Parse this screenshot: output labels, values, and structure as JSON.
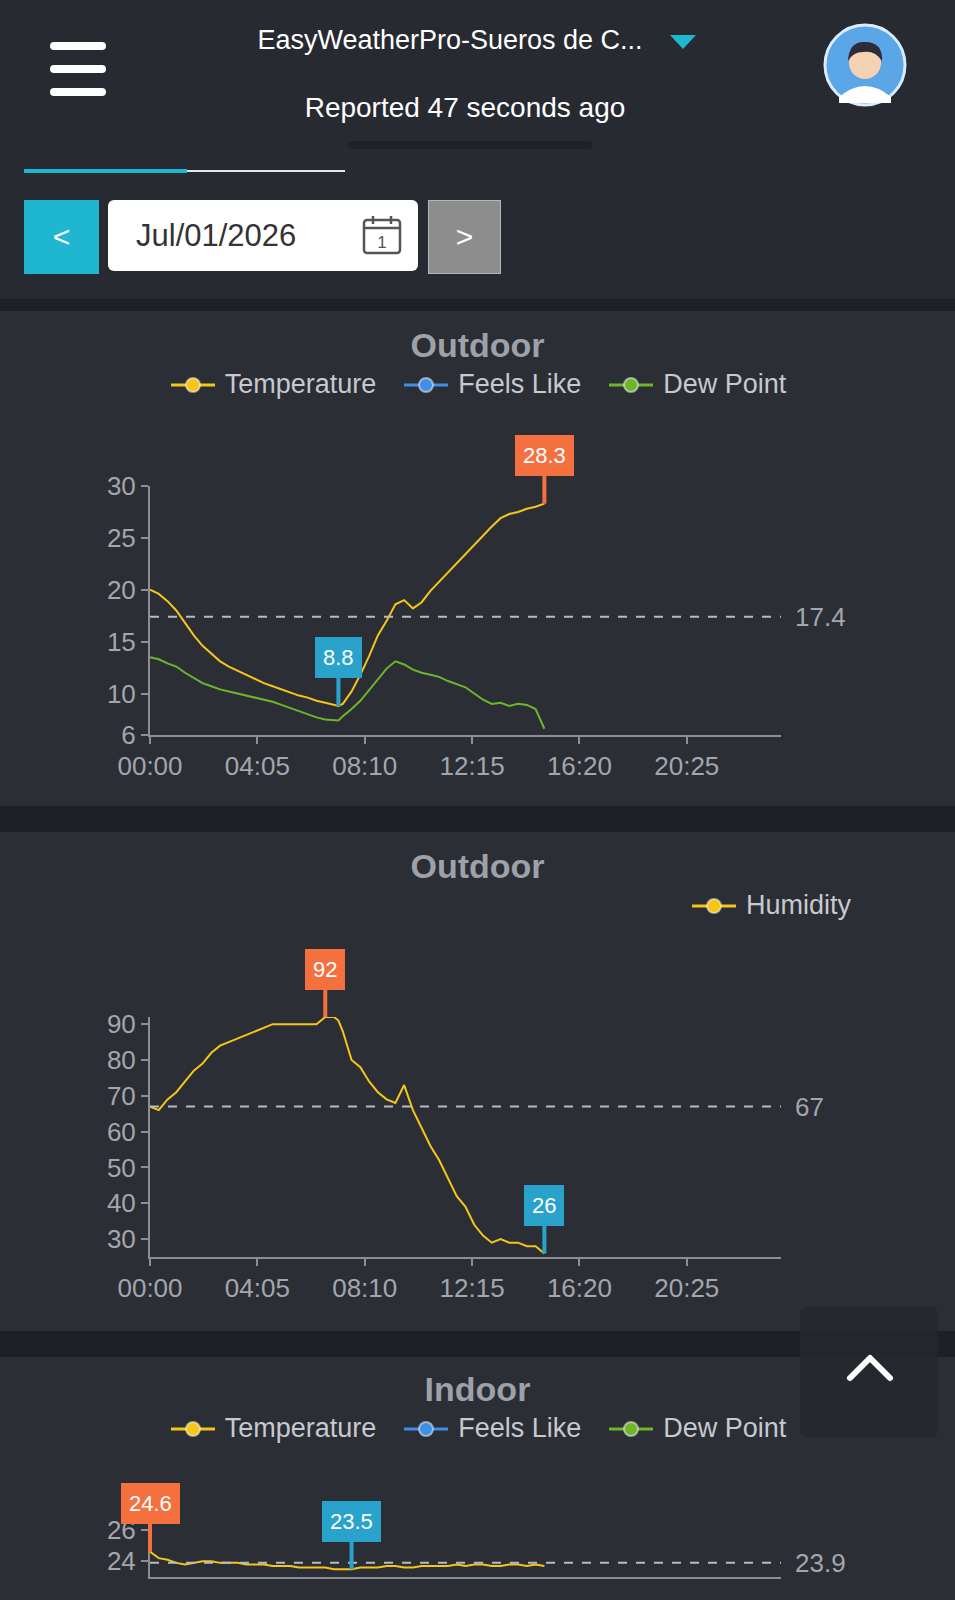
{
  "header": {
    "station": "EasyWeatherPro-Sueros de C...",
    "status": "Reported 47 seconds ago"
  },
  "date_picker": {
    "prev": "<",
    "date": "Jul/01/2026",
    "calendar_day": "1",
    "next": ">"
  },
  "chart_data": [
    {
      "type": "line",
      "title": "Outdoor",
      "legend": "top",
      "grid": false,
      "x": [
        0,
        20,
        40,
        60,
        80,
        100,
        120,
        140,
        160,
        180,
        200,
        220,
        240,
        260,
        280,
        300,
        320,
        340,
        360,
        380,
        400,
        420,
        430,
        440,
        460,
        480,
        500,
        520,
        540,
        560,
        580,
        600,
        620,
        640,
        660,
        680,
        700,
        720,
        740,
        760,
        780,
        800,
        820,
        840,
        860,
        880,
        900
      ],
      "xlim": [
        0,
        1440
      ],
      "xticks": [
        {
          "value": 0,
          "label": "00:00"
        },
        {
          "value": 245,
          "label": "04:05"
        },
        {
          "value": 490,
          "label": "08:10"
        },
        {
          "value": 735,
          "label": "12:15"
        },
        {
          "value": 980,
          "label": "16:20"
        },
        {
          "value": 1225,
          "label": "20:25"
        }
      ],
      "ylim": [
        6,
        30
      ],
      "yticks": [
        6,
        10,
        15,
        20,
        25,
        30
      ],
      "average": 17.4,
      "max": {
        "x": 900,
        "value": 28.3
      },
      "min": {
        "x": 430,
        "value": 8.8
      },
      "series": [
        {
          "name": "Temperature",
          "color": "#f5c518",
          "values": [
            20.0,
            19.6,
            18.9,
            18.0,
            16.8,
            15.6,
            14.6,
            13.8,
            13.1,
            12.6,
            12.2,
            11.8,
            11.4,
            11.0,
            10.7,
            10.4,
            10.1,
            9.8,
            9.6,
            9.3,
            9.1,
            8.9,
            8.8,
            9.0,
            10.2,
            11.8,
            13.6,
            15.6,
            17.0,
            18.6,
            19.0,
            18.2,
            18.8,
            19.9,
            20.8,
            21.7,
            22.6,
            23.5,
            24.3,
            25.2,
            26.1,
            26.9,
            27.3,
            27.5,
            27.8,
            28.0,
            28.3
          ]
        },
        {
          "name": "Feels Like",
          "color": "#3f8fe6",
          "values": [
            null,
            null,
            null,
            null,
            null,
            null,
            null,
            null,
            null,
            null,
            null,
            null,
            null,
            null,
            null,
            null,
            null,
            null,
            null,
            null,
            null,
            null,
            null,
            null,
            null,
            null,
            null,
            null,
            null,
            null,
            null,
            null,
            null,
            null,
            null,
            null,
            null,
            null,
            null,
            null,
            null,
            null,
            null,
            null,
            null,
            null,
            null
          ]
        },
        {
          "name": "Dew Point",
          "color": "#6fb52c",
          "values": [
            13.5,
            13.3,
            12.9,
            12.6,
            12.0,
            11.5,
            11.0,
            10.7,
            10.4,
            10.2,
            10.0,
            9.8,
            9.6,
            9.4,
            9.2,
            8.9,
            8.6,
            8.3,
            8.0,
            7.7,
            7.5,
            7.4,
            7.4,
            7.8,
            8.5,
            9.3,
            10.3,
            11.4,
            12.4,
            13.1,
            12.8,
            12.3,
            12.0,
            11.8,
            11.6,
            11.2,
            10.9,
            10.6,
            10.0,
            9.4,
            9.0,
            9.1,
            8.8,
            9.0,
            8.9,
            8.5,
            6.6
          ]
        }
      ]
    },
    {
      "type": "line",
      "title": "Outdoor",
      "legend": "top right",
      "grid": false,
      "x": [
        0,
        20,
        40,
        60,
        80,
        100,
        120,
        140,
        160,
        180,
        200,
        220,
        240,
        260,
        280,
        300,
        320,
        340,
        360,
        380,
        400,
        420,
        430,
        440,
        460,
        480,
        500,
        520,
        540,
        560,
        580,
        600,
        620,
        640,
        660,
        680,
        700,
        720,
        740,
        760,
        780,
        800,
        820,
        840,
        860,
        880,
        900
      ],
      "xlim": [
        0,
        1440
      ],
      "xticks": [
        {
          "value": 0,
          "label": "00:00"
        },
        {
          "value": 245,
          "label": "04:05"
        },
        {
          "value": 490,
          "label": "08:10"
        },
        {
          "value": 735,
          "label": "12:15"
        },
        {
          "value": 980,
          "label": "16:20"
        },
        {
          "value": 1225,
          "label": "20:25"
        }
      ],
      "ylim": [
        25,
        92
      ],
      "yticks": [
        30,
        40,
        50,
        60,
        70,
        80,
        90
      ],
      "average": 67,
      "max": {
        "x": 400,
        "value": 92
      },
      "min": {
        "x": 900,
        "value": 26
      },
      "series": [
        {
          "name": "Humidity",
          "color": "#f5c518",
          "values": [
            67,
            66,
            69,
            71,
            74,
            77,
            79,
            82,
            84,
            85,
            86,
            87,
            88,
            89,
            90,
            90,
            90,
            90,
            90,
            90,
            92,
            92,
            91,
            88,
            80,
            78,
            74,
            71,
            69,
            68,
            73,
            66,
            61,
            56,
            52,
            47,
            42,
            39,
            34,
            31,
            29,
            30,
            29,
            29,
            28,
            28,
            26
          ]
        }
      ]
    },
    {
      "type": "line",
      "title": "Indoor",
      "legend": "top",
      "grid": false,
      "tick_labels": "y",
      "x": [
        0,
        20,
        40,
        60,
        80,
        100,
        120,
        140,
        160,
        180,
        200,
        220,
        240,
        260,
        280,
        300,
        320,
        340,
        360,
        380,
        400,
        420,
        430,
        440,
        460,
        480,
        500,
        520,
        540,
        560,
        580,
        600,
        620,
        640,
        660,
        680,
        700,
        720,
        740,
        760,
        780,
        800,
        820,
        840,
        860,
        880,
        900
      ],
      "xlim": [
        0,
        1440
      ],
      "ylim": [
        23,
        26.5
      ],
      "yticks": [
        24,
        26
      ],
      "average": 23.9,
      "max": {
        "x": 0,
        "value": 24.6
      },
      "min": {
        "x": 460,
        "value": 23.5
      },
      "series": [
        {
          "name": "Temperature",
          "color": "#f5c518",
          "values": [
            24.6,
            24.2,
            24.1,
            23.9,
            23.8,
            23.9,
            24.0,
            24.0,
            23.9,
            23.9,
            23.9,
            23.8,
            23.8,
            23.8,
            23.7,
            23.7,
            23.7,
            23.6,
            23.6,
            23.6,
            23.6,
            23.5,
            23.5,
            23.5,
            23.5,
            23.6,
            23.6,
            23.6,
            23.7,
            23.7,
            23.6,
            23.6,
            23.7,
            23.7,
            23.7,
            23.7,
            23.8,
            23.7,
            23.8,
            23.8,
            23.7,
            23.7,
            23.8,
            23.8,
            23.7,
            23.8,
            23.7
          ]
        },
        {
          "name": "Feels Like",
          "color": "#3f8fe6",
          "values": [
            null,
            null,
            null,
            null,
            null,
            null,
            null,
            null,
            null,
            null,
            null,
            null,
            null,
            null,
            null,
            null,
            null,
            null,
            null,
            null,
            null,
            null,
            null,
            null,
            null,
            null,
            null,
            null,
            null,
            null,
            null,
            null,
            null,
            null,
            null,
            null,
            null,
            null,
            null,
            null,
            null,
            null,
            null,
            null,
            null,
            null,
            null
          ]
        },
        {
          "name": "Dew Point",
          "color": "#6fb52c",
          "values": [
            null,
            null,
            null,
            null,
            null,
            null,
            null,
            null,
            null,
            null,
            null,
            null,
            null,
            null,
            null,
            null,
            null,
            null,
            null,
            null,
            null,
            null,
            null,
            null,
            null,
            null,
            null,
            null,
            null,
            null,
            null,
            null,
            null,
            null,
            null,
            null,
            null,
            null,
            null,
            null,
            null,
            null,
            null,
            null,
            null,
            null,
            null
          ]
        }
      ]
    }
  ]
}
